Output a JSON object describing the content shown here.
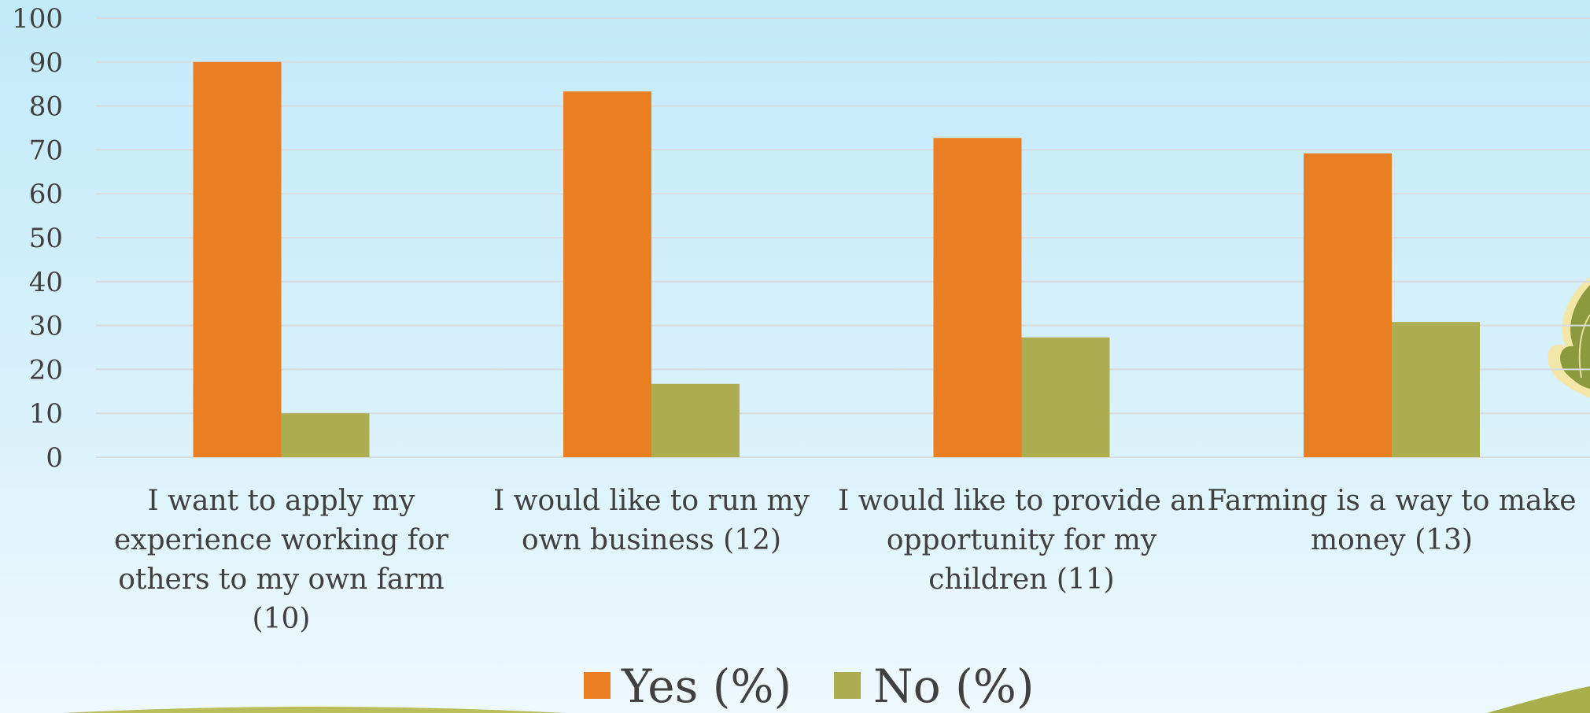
{
  "chart_data": {
    "type": "bar",
    "categories": [
      [
        "I want to apply my",
        "experience working for",
        "others to my own farm",
        "(10)"
      ],
      [
        "I would like to run my",
        "own business (12)"
      ],
      [
        "I would like to provide an",
        "opportunity for my",
        "children (11)"
      ],
      [
        "Farming is a way to make",
        "money (13)"
      ]
    ],
    "series": [
      {
        "name": "Yes (%)",
        "values": [
          90,
          83.3,
          72.7,
          69.2
        ],
        "color": "#e97e23"
      },
      {
        "name": "No (%)",
        "values": [
          10,
          16.7,
          27.3,
          30.8
        ],
        "color": "#adae51"
      }
    ],
    "yticks": [
      "0",
      "10",
      "20",
      "30",
      "40",
      "50",
      "60",
      "70",
      "80",
      "90",
      "100"
    ],
    "ylim": [
      0,
      100
    ],
    "grid": true,
    "legend": "bottom-center",
    "colors": {
      "gridline": "#d6dcdf",
      "decor_green": "#b9bd5a",
      "leaf_green": "#8a9a3c"
    }
  }
}
